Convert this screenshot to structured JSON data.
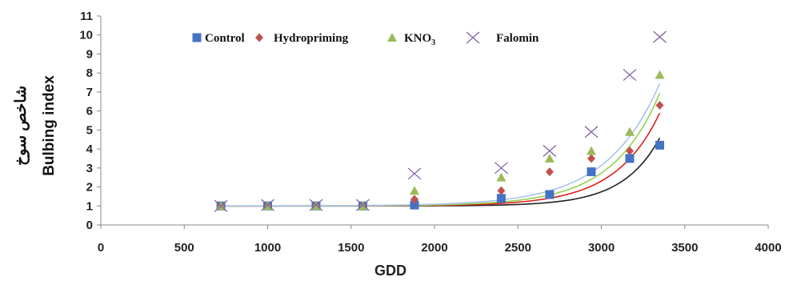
{
  "chart_data": {
    "type": "scatter",
    "xlabel": "GDD",
    "ylabel": "Bulbing index",
    "ylabel_secondary": "شاخص سوخ",
    "xlim": [
      0,
      4000
    ],
    "ylim": [
      0,
      11
    ],
    "xticks": [
      0,
      500,
      1000,
      1500,
      2000,
      2500,
      3000,
      3500,
      4000
    ],
    "yticks": [
      0,
      1,
      2,
      3,
      4,
      5,
      6,
      7,
      8,
      9,
      10,
      11
    ],
    "grid": false,
    "legend_position": "top",
    "series": [
      {
        "name": "Control",
        "marker": "square",
        "color": "#4472C4",
        "trend_color": "#222222",
        "x": [
          720,
          1000,
          1290,
          1570,
          1880,
          2400,
          2690,
          2940,
          3170,
          3350
        ],
        "y": [
          1.0,
          1.0,
          1.0,
          1.0,
          1.05,
          1.4,
          1.6,
          2.8,
          3.5,
          4.2
        ],
        "trend": [
          1.0,
          1.05e-06,
          0.00449
        ]
      },
      {
        "name": "Hydropriming",
        "marker": "diamond",
        "color": "#C0504D",
        "trend_color": "#E0201B",
        "x": [
          720,
          1000,
          1290,
          1570,
          1880,
          2400,
          2690,
          2940,
          3170,
          3350
        ],
        "y": [
          1.0,
          1.0,
          1.0,
          1.0,
          1.35,
          1.8,
          2.8,
          3.5,
          3.9,
          6.3
        ],
        "trend": [
          1.0,
          1.655e-05,
          0.00376
        ]
      },
      {
        "name": "KNO3",
        "name_main": "KNO",
        "name_sub": "3",
        "marker": "triangle",
        "color": "#9BBB59",
        "trend_color": "#92D050",
        "x": [
          720,
          1000,
          1290,
          1570,
          1880,
          2400,
          2690,
          2940,
          3170,
          3350
        ],
        "y": [
          1.0,
          1.0,
          1.0,
          1.0,
          1.8,
          2.5,
          3.5,
          3.9,
          4.9,
          7.9
        ],
        "trend": [
          1.0,
          4.49e-05,
          0.00352
        ]
      },
      {
        "name": "Falomin",
        "marker": "x",
        "color": "#8064A2",
        "trend_color": "#A9C4EA",
        "x": [
          720,
          1000,
          1290,
          1570,
          1880,
          2400,
          2690,
          2940,
          3170,
          3350
        ],
        "y": [
          1.0,
          1.05,
          1.05,
          1.05,
          2.7,
          3.0,
          3.9,
          4.9,
          7.9,
          9.9
        ],
        "trend": [
          1.0,
          0.000163,
          0.00316
        ]
      }
    ]
  }
}
